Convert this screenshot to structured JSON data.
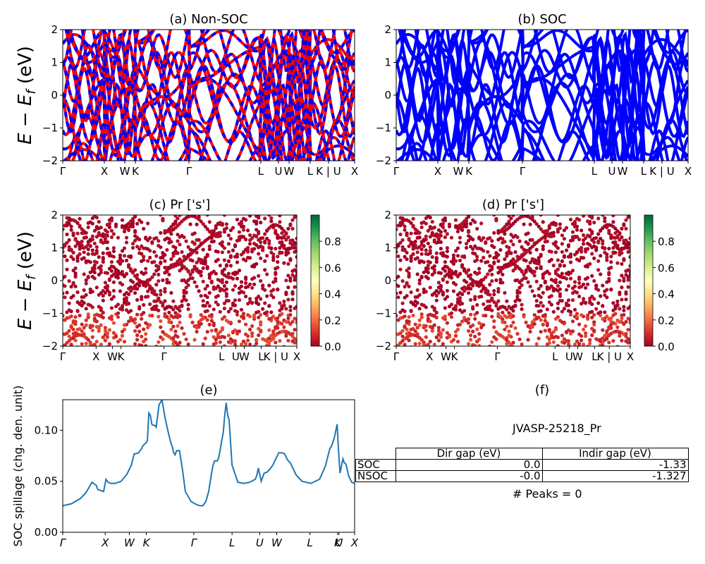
{
  "figure": {
    "panels": {
      "a": {
        "title": "(a) Non-SOC"
      },
      "b": {
        "title": "(b) SOC"
      },
      "c": {
        "title": "(c)  Pr ['s']"
      },
      "d": {
        "title": "(d) Pr ['s']"
      },
      "e": {
        "title": "(e)"
      },
      "f": {
        "title": "(f)"
      }
    }
  },
  "chart_data": [
    {
      "id": "a",
      "type": "line",
      "title": "(a) Non-SOC",
      "ylabel": "E − E_f (eV)",
      "ylim": [
        -2,
        2
      ],
      "yticks": [
        "2",
        "1",
        "0",
        "−1",
        "−2"
      ],
      "ytick_values": [
        2,
        1,
        0,
        -1,
        -2
      ],
      "xticks": [
        "Γ",
        "X",
        "W",
        "K",
        "Γ",
        "L",
        "U",
        "W",
        "L",
        "K | U",
        "X"
      ],
      "xtick_positions": [
        0,
        0.1425,
        0.2126,
        0.2488,
        0.4324,
        0.6787,
        0.7391,
        0.7754,
        0.8478,
        0.9106,
        1.0
      ],
      "series": [
        {
          "name": "Non-SOC bands",
          "color": "#ff0000",
          "style": "solid"
        },
        {
          "name": "SOC bands",
          "color": "#0000ff",
          "style": "dashed"
        }
      ]
    },
    {
      "id": "b",
      "type": "line",
      "title": "(b) SOC",
      "ylim": [
        -2,
        2
      ],
      "yticks": [
        "2",
        "1",
        "0",
        "−1",
        "−2"
      ],
      "ytick_values": [
        2,
        1,
        0,
        -1,
        -2
      ],
      "xticks": [
        "Γ",
        "X",
        "W",
        "K",
        "Γ",
        "L",
        "U",
        "W",
        "L",
        "K | U",
        "X"
      ],
      "xtick_positions": [
        0,
        0.1425,
        0.2126,
        0.2488,
        0.4324,
        0.6787,
        0.7391,
        0.7754,
        0.8478,
        0.9106,
        1.0
      ],
      "series": [
        {
          "name": "SOC bands",
          "color": "#0000ff",
          "style": "solid"
        }
      ]
    },
    {
      "id": "c",
      "type": "scatter",
      "title": "(c)  Pr ['s']",
      "ylabel": "E − E_f (eV)",
      "ylim": [
        -2,
        2
      ],
      "yticks": [
        "2",
        "1",
        "0",
        "−1",
        "−2"
      ],
      "ytick_values": [
        2,
        1,
        0,
        -1,
        -2
      ],
      "xticks": [
        "Γ",
        "X",
        "W",
        "K",
        "Γ",
        "L",
        "U",
        "W",
        "L",
        "K | U",
        "X"
      ],
      "xtick_positions": [
        0,
        0.1425,
        0.2126,
        0.2488,
        0.4324,
        0.6787,
        0.7391,
        0.7754,
        0.8478,
        0.9106,
        1.0
      ],
      "colorbar": {
        "cmap": "RdYlGn",
        "range": [
          0.0,
          1.0
        ],
        "ticks": [
          "0.0",
          "0.2",
          "0.4",
          "0.6",
          "0.8"
        ],
        "tick_values": [
          0,
          0.2,
          0.4,
          0.6,
          0.8
        ]
      }
    },
    {
      "id": "d",
      "type": "scatter",
      "title": "(d) Pr ['s']",
      "ylim": [
        -2,
        2
      ],
      "yticks": [
        "2",
        "1",
        "0",
        "−1",
        "−2"
      ],
      "ytick_values": [
        2,
        1,
        0,
        -1,
        -2
      ],
      "xticks": [
        "Γ",
        "X",
        "W",
        "K",
        "Γ",
        "L",
        "U",
        "W",
        "L",
        "K | U",
        "X"
      ],
      "xtick_positions": [
        0,
        0.1425,
        0.2126,
        0.2488,
        0.4324,
        0.6787,
        0.7391,
        0.7754,
        0.8478,
        0.9106,
        1.0
      ],
      "colorbar": {
        "cmap": "RdYlGn",
        "range": [
          0.0,
          1.0
        ],
        "ticks": [
          "0.0",
          "0.2",
          "0.4",
          "0.6",
          "0.8"
        ],
        "tick_values": [
          0,
          0.2,
          0.4,
          0.6,
          0.8
        ]
      }
    },
    {
      "id": "e",
      "type": "line",
      "title": "(e)",
      "ylabel": "SOC spillage (chg. den. unit)",
      "ylim": [
        0,
        0.13
      ],
      "yticks": [
        "0.00",
        "0.05",
        "0.10"
      ],
      "ytick_values": [
        0,
        0.05,
        0.1
      ],
      "xticks": [
        "Γ",
        "X",
        "W",
        "K",
        "Γ",
        "L",
        "U",
        "W",
        "L",
        "K",
        "U",
        "X"
      ],
      "xtick_positions": [
        0,
        0.1455,
        0.2282,
        0.2864,
        0.449,
        0.5801,
        0.6748,
        0.733,
        0.8471,
        0.9417,
        0.9466,
        1.0
      ],
      "color": "#1f77b4",
      "x": [
        0,
        0.03,
        0.06,
        0.08,
        0.1,
        0.115,
        0.12,
        0.13,
        0.14,
        0.148,
        0.155,
        0.165,
        0.18,
        0.2,
        0.22,
        0.235,
        0.245,
        0.25,
        0.26,
        0.27,
        0.275,
        0.282,
        0.287,
        0.29,
        0.295,
        0.3,
        0.305,
        0.31,
        0.315,
        0.32,
        0.33,
        0.34,
        0.35,
        0.36,
        0.37,
        0.375,
        0.38,
        0.385,
        0.39,
        0.4,
        0.41,
        0.42,
        0.44,
        0.46,
        0.47,
        0.48,
        0.49,
        0.5,
        0.51,
        0.515,
        0.52,
        0.53,
        0.535,
        0.54,
        0.545,
        0.55,
        0.555,
        0.56,
        0.565,
        0.57,
        0.58,
        0.6,
        0.62,
        0.64,
        0.66,
        0.665,
        0.67,
        0.68,
        0.69,
        0.7,
        0.71,
        0.72,
        0.73,
        0.74,
        0.75,
        0.76,
        0.77,
        0.78,
        0.8,
        0.82,
        0.85,
        0.88,
        0.9,
        0.915,
        0.92,
        0.93,
        0.94,
        0.945,
        0.95,
        0.955,
        0.96,
        0.965,
        0.97,
        0.98,
        0.99,
        1.0
      ],
      "values": [
        0.026,
        0.028,
        0.033,
        0.039,
        0.049,
        0.046,
        0.042,
        0.041,
        0.04,
        0.052,
        0.049,
        0.048,
        0.048,
        0.05,
        0.057,
        0.066,
        0.077,
        0.077,
        0.078,
        0.082,
        0.085,
        0.087,
        0.088,
        0.09,
        0.117,
        0.115,
        0.106,
        0.105,
        0.105,
        0.103,
        0.125,
        0.13,
        0.113,
        0.1,
        0.088,
        0.084,
        0.078,
        0.076,
        0.08,
        0.08,
        0.062,
        0.04,
        0.03,
        0.027,
        0.026,
        0.026,
        0.03,
        0.04,
        0.058,
        0.066,
        0.07,
        0.07,
        0.074,
        0.082,
        0.09,
        0.098,
        0.115,
        0.127,
        0.115,
        0.11,
        0.066,
        0.049,
        0.048,
        0.049,
        0.052,
        0.056,
        0.063,
        0.05,
        0.058,
        0.059,
        0.062,
        0.066,
        0.072,
        0.078,
        0.078,
        0.077,
        0.071,
        0.068,
        0.056,
        0.05,
        0.048,
        0.052,
        0.065,
        0.082,
        0.084,
        0.092,
        0.106,
        0.08,
        0.058,
        0.065,
        0.072,
        0.068,
        0.067,
        0.055,
        0.049,
        0.048
      ]
    },
    {
      "id": "f",
      "type": "table",
      "title": "(f)",
      "subtitle": "JVASP-25218_Pr",
      "columns": [
        "Dir gap (eV)",
        "Indir gap (eV)"
      ],
      "rows": [
        {
          "label": "SOC",
          "values": [
            "0.0",
            "-1.33"
          ]
        },
        {
          "label": "NSOC",
          "values": [
            "-0.0",
            "-1.327"
          ]
        }
      ],
      "footer": "# Peaks = 0"
    }
  ]
}
